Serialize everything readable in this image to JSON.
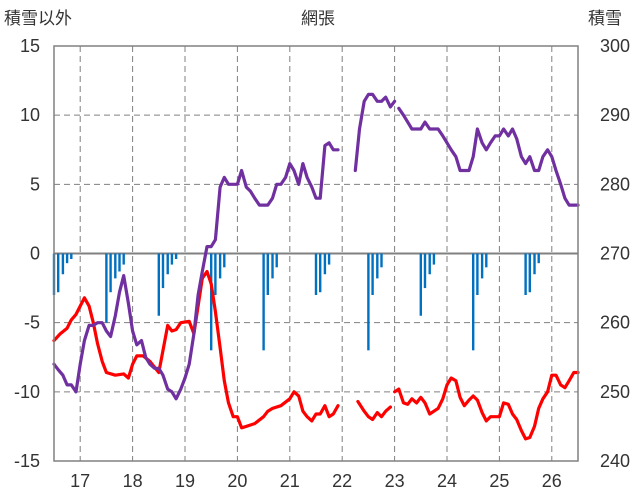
{
  "chart_data": {
    "type": "line",
    "title": "網張",
    "y_left_label": "積雪以外",
    "y_right_label": "積雪",
    "y_left_range": [
      -15,
      15
    ],
    "y_left_ticks": [
      "15",
      "10",
      "5",
      "0",
      "-5",
      "-10",
      "-15"
    ],
    "y_right_range": [
      240,
      300
    ],
    "y_right_ticks": [
      "300",
      "290",
      "280",
      "270",
      "260",
      "250",
      "240"
    ],
    "x_range": [
      16.5,
      26.5
    ],
    "x_ticks": [
      "17",
      "18",
      "19",
      "20",
      "21",
      "22",
      "23",
      "24",
      "25",
      "26"
    ],
    "grid": true,
    "colors": {
      "red_series": "#ff0000",
      "purple_series": "#7030a0",
      "blue_bars": "#0070c0",
      "frame": "#808080",
      "grid": "#808080"
    },
    "series": [
      {
        "axis": "left",
        "color": "#ff0000",
        "points": [
          [
            16.5,
            -6.3
          ],
          [
            16.62,
            -5.8
          ],
          [
            16.75,
            -5.4
          ],
          [
            16.83,
            -4.8
          ],
          [
            16.92,
            -4.4
          ],
          [
            17.0,
            -3.8
          ],
          [
            17.08,
            -3.2
          ],
          [
            17.17,
            -3.8
          ],
          [
            17.25,
            -5.0
          ],
          [
            17.33,
            -6.5
          ],
          [
            17.42,
            -7.8
          ],
          [
            17.5,
            -8.6
          ],
          [
            17.67,
            -8.8
          ],
          [
            17.83,
            -8.7
          ],
          [
            17.92,
            -9.0
          ],
          [
            18.0,
            -8.0
          ],
          [
            18.08,
            -7.4
          ],
          [
            18.2,
            -7.4
          ],
          [
            18.33,
            -7.8
          ],
          [
            18.5,
            -8.6
          ],
          [
            18.58,
            -7.0
          ],
          [
            18.67,
            -5.2
          ],
          [
            18.75,
            -5.6
          ],
          [
            18.83,
            -5.5
          ],
          [
            18.92,
            -5.0
          ],
          [
            19.08,
            -4.9
          ],
          [
            19.17,
            -5.8
          ],
          [
            19.25,
            -3.8
          ],
          [
            19.33,
            -1.8
          ],
          [
            19.42,
            -1.3
          ],
          [
            19.5,
            -2.2
          ],
          [
            19.58,
            -4.2
          ],
          [
            19.67,
            -6.8
          ],
          [
            19.75,
            -9.2
          ],
          [
            19.83,
            -10.8
          ],
          [
            19.92,
            -11.8
          ],
          [
            20.0,
            -11.8
          ],
          [
            20.08,
            -12.6
          ],
          [
            20.17,
            -12.5
          ],
          [
            20.33,
            -12.3
          ],
          [
            20.5,
            -11.8
          ],
          [
            20.58,
            -11.4
          ],
          [
            20.67,
            -11.2
          ],
          [
            20.83,
            -11.0
          ],
          [
            21.0,
            -10.5
          ],
          [
            21.08,
            -10.0
          ],
          [
            21.17,
            -10.3
          ],
          [
            21.25,
            -11.4
          ],
          [
            21.33,
            -11.8
          ],
          [
            21.42,
            -12.1
          ],
          [
            21.5,
            -11.6
          ],
          [
            21.58,
            -11.6
          ],
          [
            21.67,
            -11.0
          ],
          [
            21.75,
            -11.8
          ],
          [
            21.83,
            -11.6
          ],
          [
            21.92,
            -11.0
          ],
          [
            null,
            null
          ],
          [
            22.3,
            -10.7
          ],
          [
            22.42,
            -11.4
          ],
          [
            22.5,
            -11.8
          ],
          [
            22.58,
            -12.0
          ],
          [
            22.67,
            -11.5
          ],
          [
            22.75,
            -11.8
          ],
          [
            22.83,
            -11.4
          ],
          [
            22.92,
            -11.1
          ],
          [
            null,
            null
          ],
          [
            23.0,
            -10.0
          ],
          [
            23.08,
            -9.8
          ],
          [
            23.17,
            -10.8
          ],
          [
            23.25,
            -10.9
          ],
          [
            23.33,
            -10.5
          ],
          [
            23.42,
            -10.8
          ],
          [
            23.5,
            -10.4
          ],
          [
            23.58,
            -10.8
          ],
          [
            23.67,
            -11.6
          ],
          [
            23.75,
            -11.4
          ],
          [
            23.83,
            -11.2
          ],
          [
            23.92,
            -10.5
          ],
          [
            24.0,
            -9.5
          ],
          [
            24.08,
            -9.0
          ],
          [
            24.17,
            -9.2
          ],
          [
            24.25,
            -10.4
          ],
          [
            24.33,
            -11.0
          ],
          [
            24.42,
            -10.6
          ],
          [
            24.5,
            -10.3
          ],
          [
            24.58,
            -10.6
          ],
          [
            24.67,
            -11.5
          ],
          [
            24.75,
            -12.1
          ],
          [
            24.83,
            -11.8
          ],
          [
            25.0,
            -11.8
          ],
          [
            25.08,
            -10.8
          ],
          [
            25.17,
            -10.9
          ],
          [
            25.25,
            -11.6
          ],
          [
            25.33,
            -12.0
          ],
          [
            25.42,
            -12.8
          ],
          [
            25.5,
            -13.4
          ],
          [
            25.58,
            -13.3
          ],
          [
            25.67,
            -12.5
          ],
          [
            25.75,
            -11.2
          ],
          [
            25.83,
            -10.5
          ],
          [
            25.92,
            -10.0
          ],
          [
            26.0,
            -8.8
          ],
          [
            26.08,
            -8.8
          ],
          [
            26.17,
            -9.5
          ],
          [
            26.25,
            -9.7
          ],
          [
            26.33,
            -9.2
          ],
          [
            26.42,
            -8.6
          ],
          [
            26.5,
            -8.6
          ]
        ]
      },
      {
        "axis": "left",
        "color": "#7030a0",
        "points": [
          [
            16.5,
            -8.0
          ],
          [
            16.58,
            -8.4
          ],
          [
            16.67,
            -8.8
          ],
          [
            16.75,
            -9.5
          ],
          [
            16.83,
            -9.5
          ],
          [
            16.92,
            -10.0
          ],
          [
            17.0,
            -8.0
          ],
          [
            17.08,
            -6.3
          ],
          [
            17.17,
            -5.2
          ],
          [
            17.25,
            -5.2
          ],
          [
            17.33,
            -5.0
          ],
          [
            17.42,
            -5.0
          ],
          [
            17.5,
            -5.6
          ],
          [
            17.58,
            -6.0
          ],
          [
            17.67,
            -4.5
          ],
          [
            17.75,
            -2.8
          ],
          [
            17.83,
            -1.6
          ],
          [
            17.92,
            -3.6
          ],
          [
            18.0,
            -5.6
          ],
          [
            18.08,
            -6.6
          ],
          [
            18.17,
            -6.3
          ],
          [
            18.25,
            -7.5
          ],
          [
            18.33,
            -8.0
          ],
          [
            18.42,
            -8.3
          ],
          [
            18.5,
            -8.3
          ],
          [
            18.58,
            -8.8
          ],
          [
            18.67,
            -9.8
          ],
          [
            18.75,
            -10.0
          ],
          [
            18.83,
            -10.5
          ],
          [
            18.92,
            -9.8
          ],
          [
            19.0,
            -9.0
          ],
          [
            19.08,
            -8.0
          ],
          [
            19.17,
            -5.8
          ],
          [
            19.25,
            -3.0
          ],
          [
            19.33,
            -1.3
          ],
          [
            19.42,
            0.5
          ],
          [
            19.5,
            0.5
          ],
          [
            19.58,
            1.0
          ],
          [
            19.67,
            4.8
          ],
          [
            19.75,
            5.5
          ],
          [
            19.83,
            5.0
          ],
          [
            20.0,
            5.0
          ],
          [
            20.08,
            6.0
          ],
          [
            20.17,
            4.8
          ],
          [
            20.25,
            4.5
          ],
          [
            20.33,
            4.0
          ],
          [
            20.42,
            3.5
          ],
          [
            20.58,
            3.5
          ],
          [
            20.67,
            4.0
          ],
          [
            20.75,
            5.0
          ],
          [
            20.83,
            5.0
          ],
          [
            20.92,
            5.5
          ],
          [
            21.0,
            6.5
          ],
          [
            21.08,
            6.0
          ],
          [
            21.17,
            5.0
          ],
          [
            21.25,
            6.5
          ],
          [
            21.33,
            5.5
          ],
          [
            21.42,
            4.8
          ],
          [
            21.5,
            4.0
          ],
          [
            21.58,
            4.0
          ],
          [
            21.67,
            7.8
          ],
          [
            21.75,
            8.0
          ],
          [
            21.83,
            7.5
          ],
          [
            21.92,
            7.5
          ],
          [
            null,
            null
          ],
          [
            22.25,
            6.0
          ],
          [
            22.33,
            9.0
          ],
          [
            22.42,
            11.0
          ],
          [
            22.5,
            11.5
          ],
          [
            22.58,
            11.5
          ],
          [
            22.67,
            11.0
          ],
          [
            22.75,
            11.0
          ],
          [
            22.83,
            11.3
          ],
          [
            22.92,
            10.6
          ],
          [
            23.0,
            11.0
          ],
          [
            null,
            null
          ],
          [
            23.08,
            10.5
          ],
          [
            23.17,
            10.0
          ],
          [
            23.25,
            9.5
          ],
          [
            23.33,
            9.0
          ],
          [
            23.5,
            9.0
          ],
          [
            23.58,
            9.5
          ],
          [
            23.67,
            9.0
          ],
          [
            23.83,
            9.0
          ],
          [
            23.92,
            8.5
          ],
          [
            24.0,
            8.0
          ],
          [
            24.08,
            7.5
          ],
          [
            24.17,
            7.0
          ],
          [
            24.25,
            6.0
          ],
          [
            24.33,
            6.0
          ],
          [
            24.42,
            6.0
          ],
          [
            24.5,
            7.0
          ],
          [
            24.58,
            9.0
          ],
          [
            24.67,
            8.0
          ],
          [
            24.75,
            7.5
          ],
          [
            24.83,
            8.0
          ],
          [
            24.92,
            8.5
          ],
          [
            25.0,
            8.5
          ],
          [
            25.08,
            9.0
          ],
          [
            25.17,
            8.5
          ],
          [
            25.25,
            9.0
          ],
          [
            25.33,
            8.3
          ],
          [
            25.42,
            7.0
          ],
          [
            25.5,
            6.5
          ],
          [
            25.58,
            7.0
          ],
          [
            25.67,
            6.0
          ],
          [
            25.75,
            6.0
          ],
          [
            25.83,
            7.0
          ],
          [
            25.92,
            7.5
          ],
          [
            26.0,
            7.0
          ],
          [
            26.08,
            6.0
          ],
          [
            26.17,
            5.0
          ],
          [
            26.25,
            4.0
          ],
          [
            26.33,
            3.5
          ],
          [
            26.5,
            3.5
          ]
        ]
      },
      {
        "axis": "left",
        "color": "#0070c0",
        "kind": "bars",
        "bars": [
          [
            16.5,
            -3.0
          ],
          [
            16.58,
            -2.8
          ],
          [
            16.67,
            -1.5
          ],
          [
            16.75,
            -0.7
          ],
          [
            16.83,
            -0.4
          ],
          [
            17.5,
            -5.0
          ],
          [
            17.58,
            -2.8
          ],
          [
            17.67,
            -1.8
          ],
          [
            17.75,
            -1.3
          ],
          [
            17.83,
            -0.8
          ],
          [
            18.5,
            -4.5
          ],
          [
            18.58,
            -2.5
          ],
          [
            18.67,
            -1.5
          ],
          [
            18.75,
            -0.8
          ],
          [
            18.83,
            -0.4
          ],
          [
            19.5,
            -7.0
          ],
          [
            19.58,
            -3.0
          ],
          [
            19.67,
            -1.8
          ],
          [
            19.75,
            -1.0
          ],
          [
            20.5,
            -7.0
          ],
          [
            20.58,
            -3.0
          ],
          [
            20.67,
            -1.8
          ],
          [
            20.75,
            -1.0
          ],
          [
            21.5,
            -3.0
          ],
          [
            21.58,
            -2.8
          ],
          [
            21.67,
            -1.5
          ],
          [
            21.75,
            -0.8
          ],
          [
            22.5,
            -7.0
          ],
          [
            22.58,
            -3.0
          ],
          [
            22.67,
            -1.8
          ],
          [
            22.75,
            -1.0
          ],
          [
            23.5,
            -4.5
          ],
          [
            23.58,
            -2.5
          ],
          [
            23.67,
            -1.5
          ],
          [
            23.75,
            -0.8
          ],
          [
            24.5,
            -7.0
          ],
          [
            24.58,
            -3.0
          ],
          [
            24.67,
            -1.8
          ],
          [
            24.75,
            -1.0
          ],
          [
            25.5,
            -3.0
          ],
          [
            25.58,
            -2.8
          ],
          [
            25.67,
            -1.5
          ],
          [
            25.75,
            -0.7
          ]
        ]
      }
    ]
  }
}
